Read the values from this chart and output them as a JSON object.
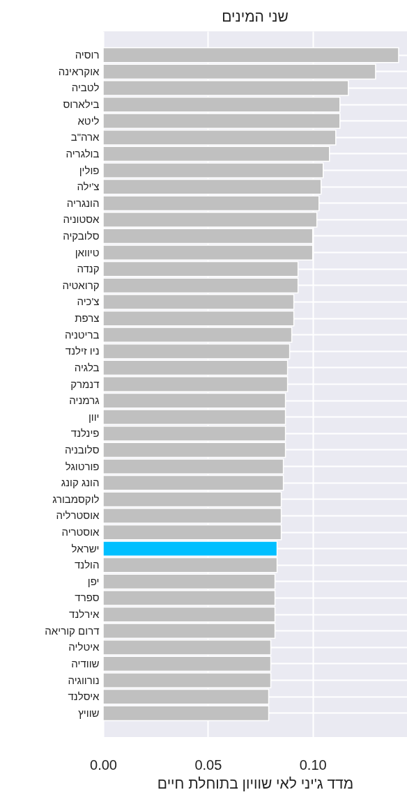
{
  "chart_data": {
    "type": "bar",
    "orientation": "horizontal",
    "title": "שני המינים",
    "xlabel": "מדד ג'יני לאי שוויון בתוחלת חיים",
    "categories": [
      "רוסיה",
      "אוקראינה",
      "לטביה",
      "בילארוס",
      "ליטא",
      "ארה\"ב",
      "בולגריה",
      "פולין",
      "צ'ילה",
      "הונגריה",
      "אסטוניה",
      "סלובקיה",
      "טיוואן",
      "קנדה",
      "קרואטיה",
      "צ'כיה",
      "צרפת",
      "בריטניה",
      "ניו זילנד",
      "בלגיה",
      "דנמרק",
      "גרמניה",
      "יוון",
      "פינלנד",
      "סלובניה",
      "פורטוגל",
      "הונג קונג",
      "לוקסמבורג",
      "אוסטרליה",
      "אוסטריה",
      "ישראל",
      "הולנד",
      "יפן",
      "ספרד",
      "אירלנד",
      "דרום קוריאה",
      "איטליה",
      "שוודיה",
      "נורווגיה",
      "איסלנד",
      "שוויץ"
    ],
    "values": [
      0.141,
      0.13,
      0.117,
      0.113,
      0.113,
      0.111,
      0.108,
      0.105,
      0.104,
      0.103,
      0.102,
      0.1,
      0.1,
      0.093,
      0.093,
      0.091,
      0.091,
      0.09,
      0.089,
      0.088,
      0.088,
      0.087,
      0.087,
      0.087,
      0.087,
      0.086,
      0.086,
      0.085,
      0.085,
      0.085,
      0.083,
      0.083,
      0.082,
      0.082,
      0.082,
      0.082,
      0.08,
      0.08,
      0.08,
      0.079,
      0.079
    ],
    "colors": [
      "#c0c0c0",
      "#c0c0c0",
      "#c0c0c0",
      "#c0c0c0",
      "#c0c0c0",
      "#c0c0c0",
      "#c0c0c0",
      "#c0c0c0",
      "#c0c0c0",
      "#c0c0c0",
      "#c0c0c0",
      "#c0c0c0",
      "#c0c0c0",
      "#c0c0c0",
      "#c0c0c0",
      "#c0c0c0",
      "#c0c0c0",
      "#c0c0c0",
      "#c0c0c0",
      "#c0c0c0",
      "#c0c0c0",
      "#c0c0c0",
      "#c0c0c0",
      "#c0c0c0",
      "#c0c0c0",
      "#c0c0c0",
      "#c0c0c0",
      "#c0c0c0",
      "#c0c0c0",
      "#c0c0c0",
      "#00bfff",
      "#c0c0c0",
      "#c0c0c0",
      "#c0c0c0",
      "#c0c0c0",
      "#c0c0c0",
      "#c0c0c0",
      "#c0c0c0",
      "#c0c0c0",
      "#c0c0c0",
      "#c0c0c0"
    ],
    "xlim": [
      0,
      0.145
    ],
    "xticks": [
      {
        "value": 0,
        "label": "0.00"
      },
      {
        "value": 0.05,
        "label": "0.05"
      },
      {
        "value": 0.1,
        "label": "0.10"
      }
    ],
    "grid": true
  }
}
